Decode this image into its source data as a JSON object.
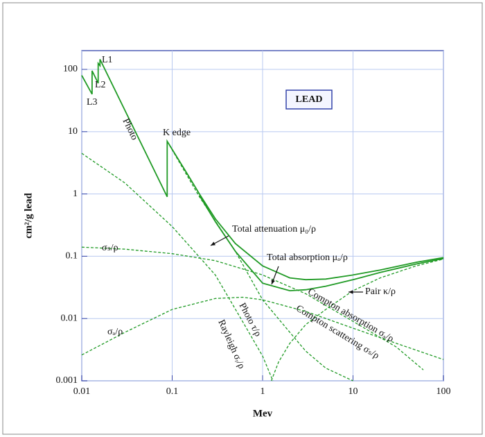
{
  "chart_data": {
    "type": "line",
    "xlabel": "Mev",
    "ylabel": "cm²/g lead",
    "log_x": true,
    "log_y": true,
    "grid": true,
    "xlim": [
      0.01,
      100
    ],
    "xticks": [
      0.01,
      0.1,
      1,
      10,
      100
    ],
    "ylim": [
      0.001,
      200
    ],
    "yticks": [
      0.001,
      0.01,
      0.1,
      1,
      10,
      100
    ],
    "series": [
      {
        "name": "Total attenuation μ₀/ρ",
        "color": "#1f9a24",
        "style": "solid",
        "x": [
          0.01,
          0.013,
          0.013,
          0.0152,
          0.0152,
          0.0159,
          0.0159,
          0.088,
          0.088,
          0.15,
          0.2,
          0.3,
          0.5,
          1,
          2,
          3,
          5,
          10,
          20,
          50,
          100
        ],
        "values": [
          80,
          40,
          95,
          60,
          125,
          115,
          145,
          0.9,
          7,
          2.0,
          1.0,
          0.4,
          0.16,
          0.07,
          0.045,
          0.042,
          0.043,
          0.05,
          0.06,
          0.08,
          0.095
        ]
      },
      {
        "name": "Total absorption μₐ/ρ",
        "color": "#1f9a24",
        "style": "solid",
        "x": [
          0.2,
          0.3,
          0.5,
          1,
          2,
          3,
          5,
          10,
          20,
          50,
          100
        ],
        "values": [
          0.95,
          0.36,
          0.12,
          0.037,
          0.028,
          0.029,
          0.033,
          0.042,
          0.055,
          0.075,
          0.092
        ]
      },
      {
        "name": "Photo τ/ρ",
        "color": "#1f9a24",
        "style": "dashed",
        "x": [
          0.088,
          0.2,
          0.5,
          1,
          2,
          3,
          5,
          10
        ],
        "values": [
          7,
          0.9,
          0.12,
          0.02,
          0.006,
          0.003,
          0.0016,
          0.001
        ]
      },
      {
        "name": "Rayleigh σᵣ/ρ",
        "color": "#1f9a24",
        "style": "dashed",
        "x": [
          0.01,
          0.03,
          0.1,
          0.3,
          0.6,
          1,
          1.3
        ],
        "values": [
          4.5,
          1.5,
          0.3,
          0.05,
          0.009,
          0.0025,
          0.001
        ]
      },
      {
        "name": "Pair κ/ρ",
        "color": "#1f9a24",
        "style": "dashed",
        "x": [
          1.25,
          1.5,
          2,
          3,
          5,
          10,
          20,
          50,
          100
        ],
        "values": [
          0.001,
          0.002,
          0.004,
          0.008,
          0.014,
          0.028,
          0.045,
          0.07,
          0.09
        ]
      },
      {
        "name": "Compton scattering σₛ/ρ",
        "color": "#1f9a24",
        "style": "dashed",
        "x": [
          0.01,
          0.03,
          0.1,
          0.3,
          1,
          3,
          10,
          30,
          60
        ],
        "values": [
          0.14,
          0.13,
          0.11,
          0.085,
          0.05,
          0.025,
          0.009,
          0.0035,
          0.0015
        ]
      },
      {
        "name": "Compton absorption σₐ/ρ",
        "color": "#1f9a24",
        "style": "dashed",
        "x": [
          0.01,
          0.03,
          0.1,
          0.3,
          0.6,
          1,
          3,
          10,
          30,
          100
        ],
        "values": [
          0.0026,
          0.006,
          0.014,
          0.021,
          0.022,
          0.02,
          0.013,
          0.007,
          0.004,
          0.0022
        ]
      }
    ],
    "annotations": [
      "L1",
      "L2",
      "L3",
      "Photo",
      "K edge",
      "LEAD",
      "σₛ/ρ",
      "σₐ/ρ"
    ]
  }
}
